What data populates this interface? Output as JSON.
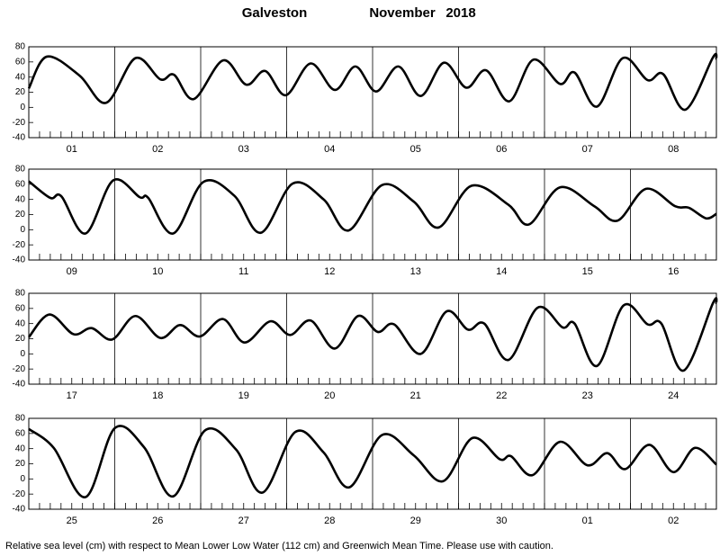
{
  "title": "Galveston",
  "month": "November",
  "year": "2018",
  "footnote": "Relative sea level (cm) with respect to Mean Lower Low Water (112 cm) and Greenwich Mean Time. Please use with caution.",
  "chart_data": [
    {
      "type": "line",
      "color": "#000000",
      "categories": [
        "01",
        "02",
        "03",
        "04",
        "05",
        "06",
        "07",
        "08"
      ],
      "xlim": [
        0,
        8
      ],
      "ylim": [
        -40,
        80
      ],
      "yticks": [
        -40,
        -20,
        0,
        20,
        40,
        60,
        80
      ],
      "x": [
        0,
        0.21,
        0.59,
        0.9,
        1.24,
        1.53,
        1.69,
        1.92,
        2.26,
        2.53,
        2.75,
        2.99,
        3.28,
        3.56,
        3.8,
        4.04,
        4.3,
        4.56,
        4.83,
        5.09,
        5.32,
        5.59,
        5.87,
        6.18,
        6.35,
        6.61,
        6.91,
        7.2,
        7.38,
        7.64,
        7.96,
        8
      ],
      "values": [
        25,
        67,
        42,
        6,
        65,
        37,
        43,
        11,
        62,
        30,
        48,
        16,
        58,
        23,
        54,
        21,
        54,
        15,
        59,
        26,
        49,
        8,
        63,
        31,
        46,
        1,
        65,
        36,
        44,
        -3,
        66,
        64
      ]
    },
    {
      "type": "line",
      "color": "#000000",
      "categories": [
        "09",
        "10",
        "11",
        "12",
        "13",
        "14",
        "15",
        "16"
      ],
      "xlim": [
        0,
        8
      ],
      "ylim": [
        -40,
        80
      ],
      "yticks": [
        -40,
        -20,
        0,
        20,
        40,
        60,
        80
      ],
      "x": [
        0,
        0.25,
        0.38,
        0.66,
        0.98,
        1.29,
        1.39,
        1.68,
        2.03,
        2.39,
        2.7,
        3.07,
        3.43,
        3.72,
        4.11,
        4.48,
        4.77,
        5.15,
        5.58,
        5.82,
        6.18,
        6.58,
        6.85,
        7.18,
        7.52,
        7.68,
        7.88,
        8
      ],
      "values": [
        64,
        42,
        44,
        -5,
        65,
        43,
        42,
        -5,
        63,
        45,
        -4,
        61,
        40,
        -1,
        59,
        37,
        3,
        58,
        33,
        7,
        56,
        31,
        12,
        54,
        31,
        29,
        15,
        21
      ]
    },
    {
      "type": "line",
      "color": "#000000",
      "categories": [
        "17",
        "18",
        "19",
        "20",
        "21",
        "22",
        "23",
        "24"
      ],
      "xlim": [
        0,
        8
      ],
      "ylim": [
        -40,
        80
      ],
      "yticks": [
        -40,
        -20,
        0,
        20,
        40,
        60,
        80
      ],
      "x": [
        0,
        0.24,
        0.52,
        0.73,
        0.97,
        1.24,
        1.53,
        1.76,
        1.99,
        2.26,
        2.51,
        2.81,
        3.04,
        3.28,
        3.56,
        3.83,
        4.06,
        4.25,
        4.56,
        4.86,
        5.11,
        5.3,
        5.58,
        5.92,
        6.21,
        6.35,
        6.61,
        6.92,
        7.2,
        7.36,
        7.62,
        7.96,
        8
      ],
      "values": [
        22,
        52,
        26,
        34,
        19,
        50,
        21,
        38,
        23,
        46,
        15,
        43,
        25,
        44,
        7,
        50,
        29,
        39,
        0,
        56,
        32,
        40,
        -8,
        61,
        35,
        40,
        -16,
        64,
        39,
        40,
        -22,
        67,
        67
      ]
    },
    {
      "type": "line",
      "color": "#000000",
      "categories": [
        "25",
        "26",
        "27",
        "28",
        "29",
        "30",
        "01",
        "02"
      ],
      "xlim": [
        0,
        8
      ],
      "ylim": [
        -40,
        80
      ],
      "yticks": [
        -40,
        -20,
        0,
        20,
        40,
        60,
        80
      ],
      "x": [
        0,
        0.29,
        0.66,
        1.0,
        1.34,
        1.68,
        2.05,
        2.41,
        2.72,
        3.1,
        3.43,
        3.73,
        4.11,
        4.48,
        4.82,
        5.16,
        5.48,
        5.61,
        5.86,
        6.18,
        6.5,
        6.73,
        6.94,
        7.22,
        7.5,
        7.75,
        8
      ],
      "values": [
        66,
        41,
        -24,
        67,
        42,
        -23,
        64,
        39,
        -18,
        62,
        35,
        -11,
        58,
        31,
        -3,
        54,
        26,
        30,
        5,
        49,
        18,
        34,
        13,
        45,
        9,
        41,
        19
      ]
    }
  ]
}
